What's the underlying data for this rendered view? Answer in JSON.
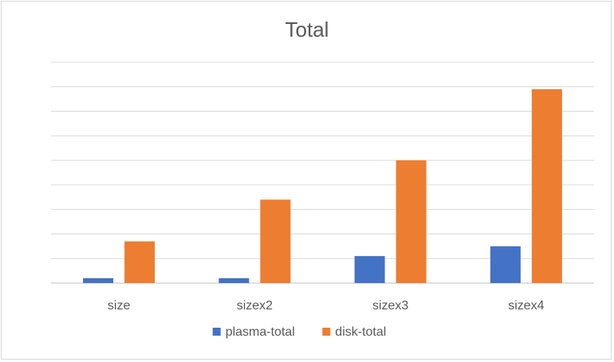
{
  "chart_data": {
    "type": "bar",
    "title": "Total",
    "xlabel": "",
    "ylabel": "",
    "categories": [
      "size",
      "sizex2",
      "sizex3",
      "sizex4"
    ],
    "series": [
      {
        "name": "plasma-total",
        "color": "#4472c4",
        "values": [
          0.2,
          0.2,
          1.1,
          1.5
        ]
      },
      {
        "name": "disk-total",
        "color": "#ed7d31",
        "values": [
          1.7,
          3.4,
          5.0,
          7.9
        ]
      }
    ],
    "ylim": [
      0,
      9
    ],
    "y_gridlines": 9,
    "y_tick_labels_shown": false,
    "grid": true,
    "legend": "bottom"
  }
}
